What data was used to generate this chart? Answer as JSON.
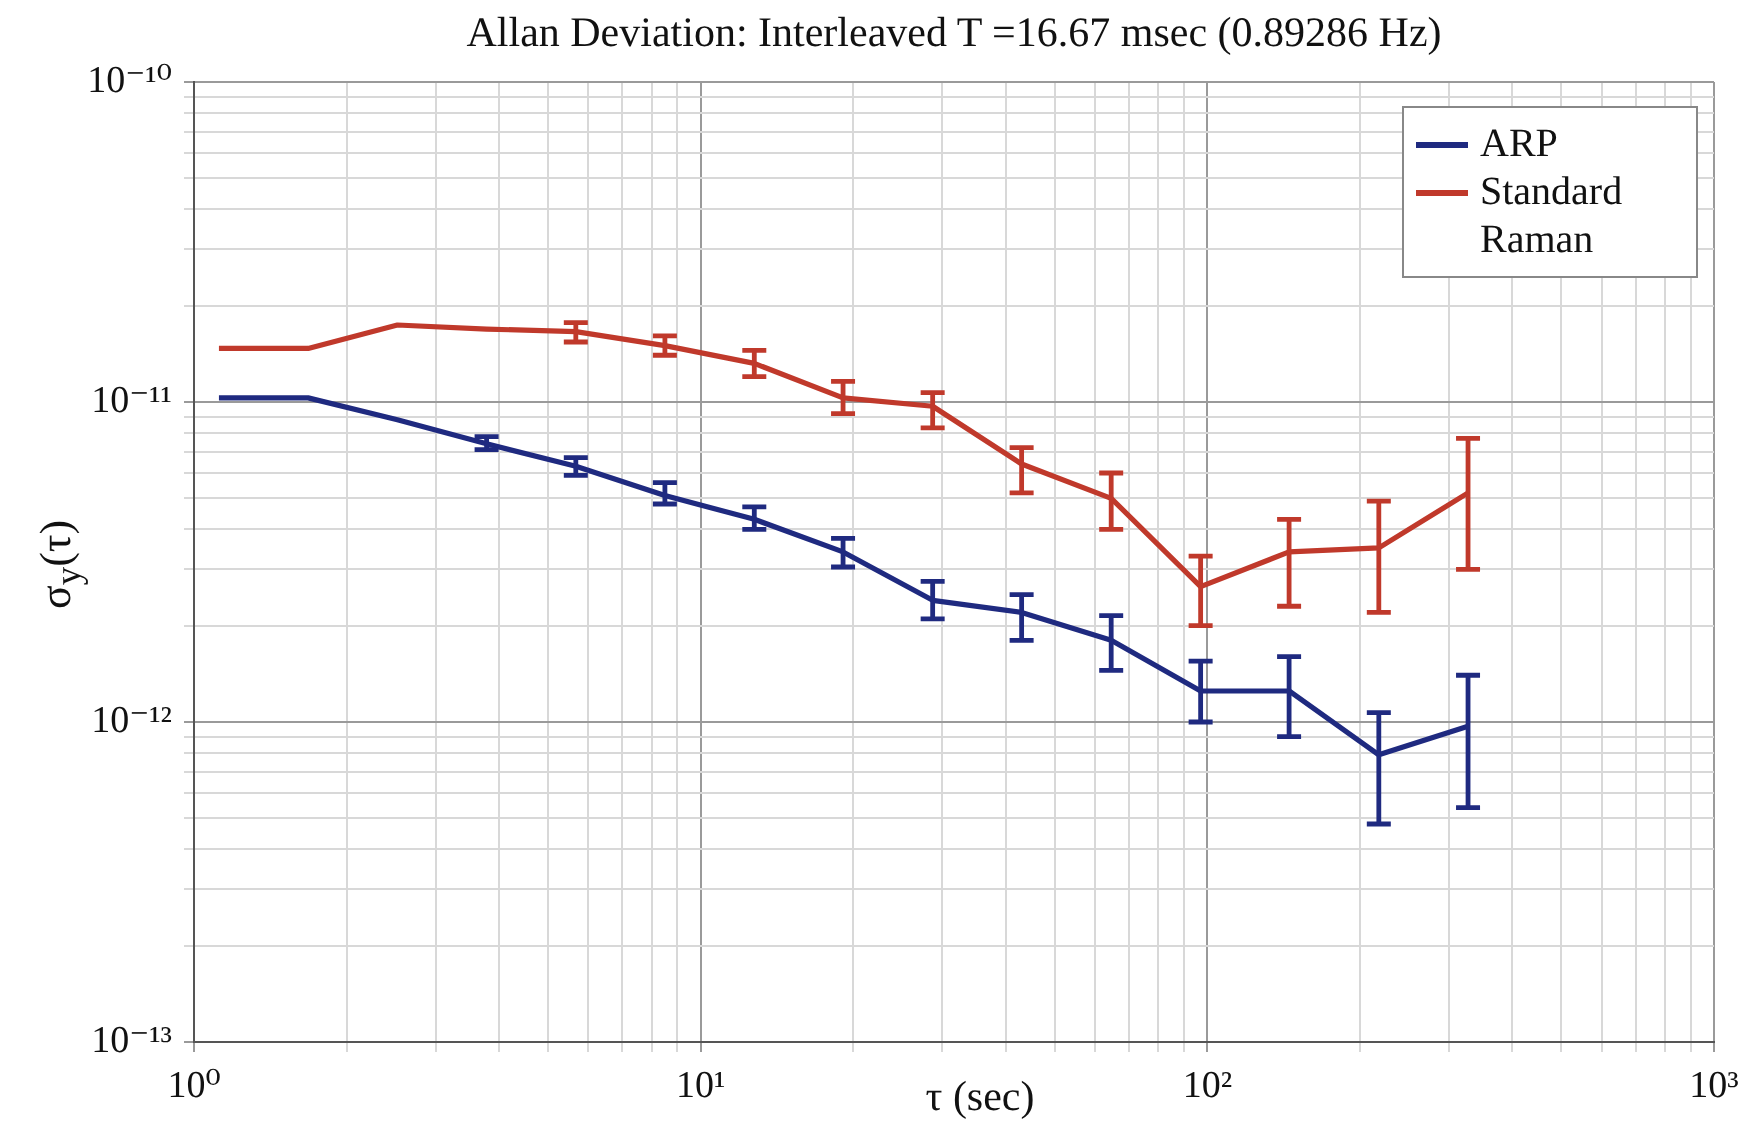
{
  "chart_data": {
    "type": "line",
    "title": "Allan Deviation: Interleaved T =16.67 msec (0.89286 Hz)",
    "xlabel": "τ (sec)",
    "ylabel": "σ$_{y}$(τ)",
    "log": "xy",
    "grid": true,
    "legend": "top right",
    "marker": "none",
    "line_style": "solid",
    "x": [
      1.12,
      1.68,
      2.52,
      3.78,
      5.67,
      8.5,
      12.76,
      19.1,
      28.7,
      43,
      64.6,
      97,
      145,
      218,
      327
    ],
    "xlim": [
      1,
      1000
    ],
    "ylim": [
      1e-13,
      1e-10
    ],
    "xticks": [
      {
        "value": 1,
        "label": "10⁰"
      },
      {
        "value": 2,
        "label": null
      },
      {
        "value": 3,
        "label": null
      },
      {
        "value": 4,
        "label": null
      },
      {
        "value": 5,
        "label": null
      },
      {
        "value": 6,
        "label": null
      },
      {
        "value": 7,
        "label": null
      },
      {
        "value": 8,
        "label": null
      },
      {
        "value": 9,
        "label": null
      },
      {
        "value": 10,
        "label": "10¹"
      },
      {
        "value": 20,
        "label": null
      },
      {
        "value": 30,
        "label": null
      },
      {
        "value": 40,
        "label": null
      },
      {
        "value": 50,
        "label": null
      },
      {
        "value": 60,
        "label": null
      },
      {
        "value": 70,
        "label": null
      },
      {
        "value": 80,
        "label": null
      },
      {
        "value": 90,
        "label": null
      },
      {
        "value": 100,
        "label": "10²"
      },
      {
        "value": 200,
        "label": null
      },
      {
        "value": 300,
        "label": null
      },
      {
        "value": 400,
        "label": null
      },
      {
        "value": 500,
        "label": null
      },
      {
        "value": 600,
        "label": null
      },
      {
        "value": 700,
        "label": null
      },
      {
        "value": 800,
        "label": null
      },
      {
        "value": 900,
        "label": null
      },
      {
        "value": 1000,
        "label": "10³"
      }
    ],
    "yticks": [
      {
        "value": 1e-13,
        "label": "10⁻¹³"
      },
      {
        "value": 2e-13,
        "label": null
      },
      {
        "value": 3e-13,
        "label": null
      },
      {
        "value": 4e-13,
        "label": null
      },
      {
        "value": 5e-13,
        "label": null
      },
      {
        "value": 6e-13,
        "label": null
      },
      {
        "value": 7e-13,
        "label": null
      },
      {
        "value": 8e-13,
        "label": null
      },
      {
        "value": 9e-13,
        "label": null
      },
      {
        "value": 1e-12,
        "label": "10⁻¹²"
      },
      {
        "value": 2e-12,
        "label": null
      },
      {
        "value": 3e-12,
        "label": null
      },
      {
        "value": 4e-12,
        "label": null
      },
      {
        "value": 5e-12,
        "label": null
      },
      {
        "value": 6e-12,
        "label": null
      },
      {
        "value": 7e-12,
        "label": null
      },
      {
        "value": 8e-12,
        "label": null
      },
      {
        "value": 9e-12,
        "label": null
      },
      {
        "value": 1e-11,
        "label": "10⁻¹¹"
      },
      {
        "value": 2e-11,
        "label": null
      },
      {
        "value": 3e-11,
        "label": null
      },
      {
        "value": 4e-11,
        "label": null
      },
      {
        "value": 5e-11,
        "label": null
      },
      {
        "value": 6e-11,
        "label": null
      },
      {
        "value": 7e-11,
        "label": null
      },
      {
        "value": 8e-11,
        "label": null
      },
      {
        "value": 9e-11,
        "label": null
      },
      {
        "value": 1e-10,
        "label": "10⁻¹⁰"
      }
    ],
    "series": [
      {
        "name": "ARP",
        "color": "#1f2a80",
        "values": [
          1.03e-11,
          1.03e-11,
          8.8e-12,
          7.4e-12,
          6.3e-12,
          5.1e-12,
          4.3e-12,
          3.4e-12,
          2.4e-12,
          2.2e-12,
          1.8e-12,
          1.25e-12,
          1.25e-12,
          7.9e-13,
          9.7e-13
        ],
        "errors": [
          null,
          null,
          null,
          [
            7.1e-12,
            7.8e-12
          ],
          [
            5.9e-12,
            6.7e-12
          ],
          [
            4.8e-12,
            5.6e-12
          ],
          [
            4e-12,
            4.7e-12
          ],
          [
            3.05e-12,
            3.75e-12
          ],
          [
            2.1e-12,
            2.75e-12
          ],
          [
            1.8e-12,
            2.5e-12
          ],
          [
            1.45e-12,
            2.15e-12
          ],
          [
            1e-12,
            1.55e-12
          ],
          [
            9e-13,
            1.6e-12
          ],
          [
            4.8e-13,
            1.07e-12
          ],
          [
            5.4e-13,
            1.4e-12
          ]
        ]
      },
      {
        "name": "Standard Raman",
        "color": "#c0392b",
        "values": [
          1.47e-11,
          1.47e-11,
          1.74e-11,
          1.69e-11,
          1.66e-11,
          1.5e-11,
          1.32e-11,
          1.03e-11,
          9.7e-12,
          6.4e-12,
          5e-12,
          2.65e-12,
          3.4e-12,
          3.5e-12,
          5.2e-12
        ],
        "errors": [
          null,
          null,
          null,
          null,
          [
            1.54e-11,
            1.77e-11
          ],
          [
            1.4e-11,
            1.61e-11
          ],
          [
            1.2e-11,
            1.45e-11
          ],
          [
            9.2e-12,
            1.16e-11
          ],
          [
            8.3e-12,
            1.07e-11
          ],
          [
            5.2e-12,
            7.2e-12
          ],
          [
            4e-12,
            6e-12
          ],
          [
            2e-12,
            3.3e-12
          ],
          [
            2.3e-12,
            4.3e-12
          ],
          [
            2.2e-12,
            4.9e-12
          ],
          [
            3e-12,
            7.7e-12
          ]
        ]
      }
    ]
  }
}
